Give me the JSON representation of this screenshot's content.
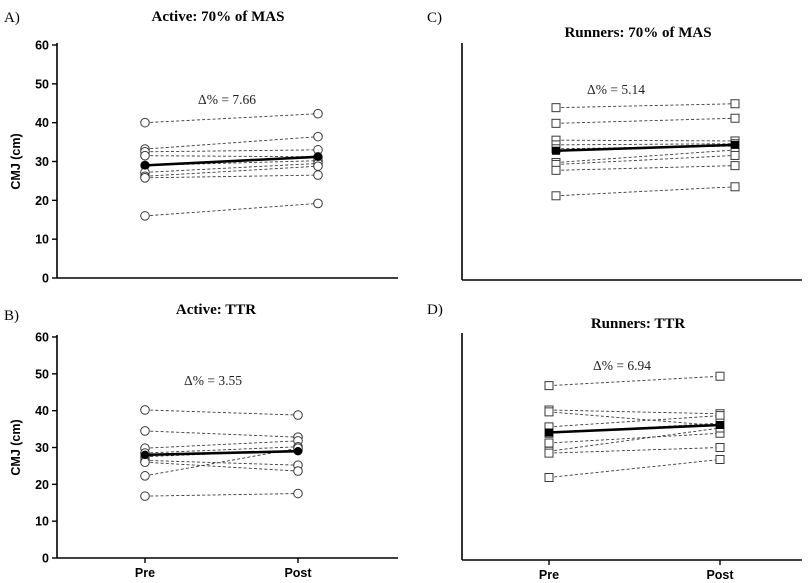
{
  "figure": {
    "x_categories": [
      "Pre",
      "Post"
    ],
    "colors": {
      "axis": "#000000",
      "individual": "#3a3a3a",
      "mean": "#000000",
      "background": "#ffffff"
    }
  },
  "chart_data": [
    {
      "panel_label": "A)",
      "type": "line",
      "title": "Active: 70% of MAS",
      "ylabel": "CMJ (cm)",
      "ylim": [
        0,
        60
      ],
      "yticks": [
        "0",
        "10",
        "20",
        "30",
        "40",
        "50",
        "60"
      ],
      "marker": "circle",
      "annotation": "Δ% = 7.66",
      "series": [
        {
          "values": [
            40.0,
            42.3
          ]
        },
        {
          "values": [
            33.2,
            36.4
          ]
        },
        {
          "values": [
            32.5,
            33.0
          ]
        },
        {
          "values": [
            31.5,
            31.2
          ]
        },
        {
          "values": [
            29.0,
            30.2
          ]
        },
        {
          "values": [
            27.2,
            29.5
          ]
        },
        {
          "values": [
            26.2,
            28.8
          ]
        },
        {
          "values": [
            25.8,
            26.5
          ]
        },
        {
          "values": [
            16.0,
            19.2
          ]
        }
      ],
      "mean": [
        29.0,
        31.2
      ]
    },
    {
      "panel_label": "C)",
      "type": "line",
      "title": "Runners: 70% of MAS",
      "ylabel": "",
      "ylim": [
        0,
        60
      ],
      "yticks": [],
      "marker": "square",
      "annotation": "Δ% = 5.14",
      "series": [
        {
          "values": [
            44.0,
            45.0
          ]
        },
        {
          "values": [
            40.0,
            41.3
          ]
        },
        {
          "values": [
            35.7,
            35.5
          ]
        },
        {
          "values": [
            34.5,
            34.8
          ]
        },
        {
          "values": [
            33.5,
            34.2
          ]
        },
        {
          "values": [
            30.0,
            33.2
          ]
        },
        {
          "values": [
            29.5,
            31.8
          ]
        },
        {
          "values": [
            28.0,
            29.2
          ]
        },
        {
          "values": [
            21.5,
            23.8
          ]
        }
      ],
      "mean": [
        33.0,
        34.5
      ]
    },
    {
      "panel_label": "B)",
      "type": "line",
      "title": "Active: TTR",
      "ylabel": "CMJ (cm)",
      "ylim": [
        0,
        60
      ],
      "yticks": [
        "0",
        "10",
        "20",
        "30",
        "40",
        "50",
        "60"
      ],
      "marker": "circle",
      "annotation": "Δ% = 3.55",
      "series": [
        {
          "values": [
            40.2,
            38.8
          ]
        },
        {
          "values": [
            34.5,
            32.8
          ]
        },
        {
          "values": [
            29.8,
            31.8
          ]
        },
        {
          "values": [
            28.5,
            30.2
          ]
        },
        {
          "values": [
            27.5,
            29.2
          ]
        },
        {
          "values": [
            26.5,
            25.2
          ]
        },
        {
          "values": [
            26.0,
            23.6
          ]
        },
        {
          "values": [
            22.3,
            29.8
          ]
        },
        {
          "values": [
            16.8,
            17.5
          ]
        }
      ],
      "mean": [
        28.0,
        29.0
      ]
    },
    {
      "panel_label": "D)",
      "type": "line",
      "title": "Runners: TTR",
      "ylabel": "",
      "ylim": [
        0,
        60
      ],
      "yticks": [],
      "marker": "square",
      "annotation": "Δ% = 6.94",
      "series": [
        {
          "values": [
            46.5,
            49.0
          ]
        },
        {
          "values": [
            40.0,
            39.0
          ]
        },
        {
          "values": [
            39.5,
            35.8
          ]
        },
        {
          "values": [
            35.5,
            38.5
          ]
        },
        {
          "values": [
            33.8,
            36.5
          ]
        },
        {
          "values": [
            31.2,
            33.8
          ]
        },
        {
          "values": [
            29.0,
            35.2
          ]
        },
        {
          "values": [
            28.5,
            30.0
          ]
        },
        {
          "values": [
            22.0,
            26.8
          ]
        }
      ],
      "mean": [
        34.0,
        36.0
      ]
    }
  ]
}
